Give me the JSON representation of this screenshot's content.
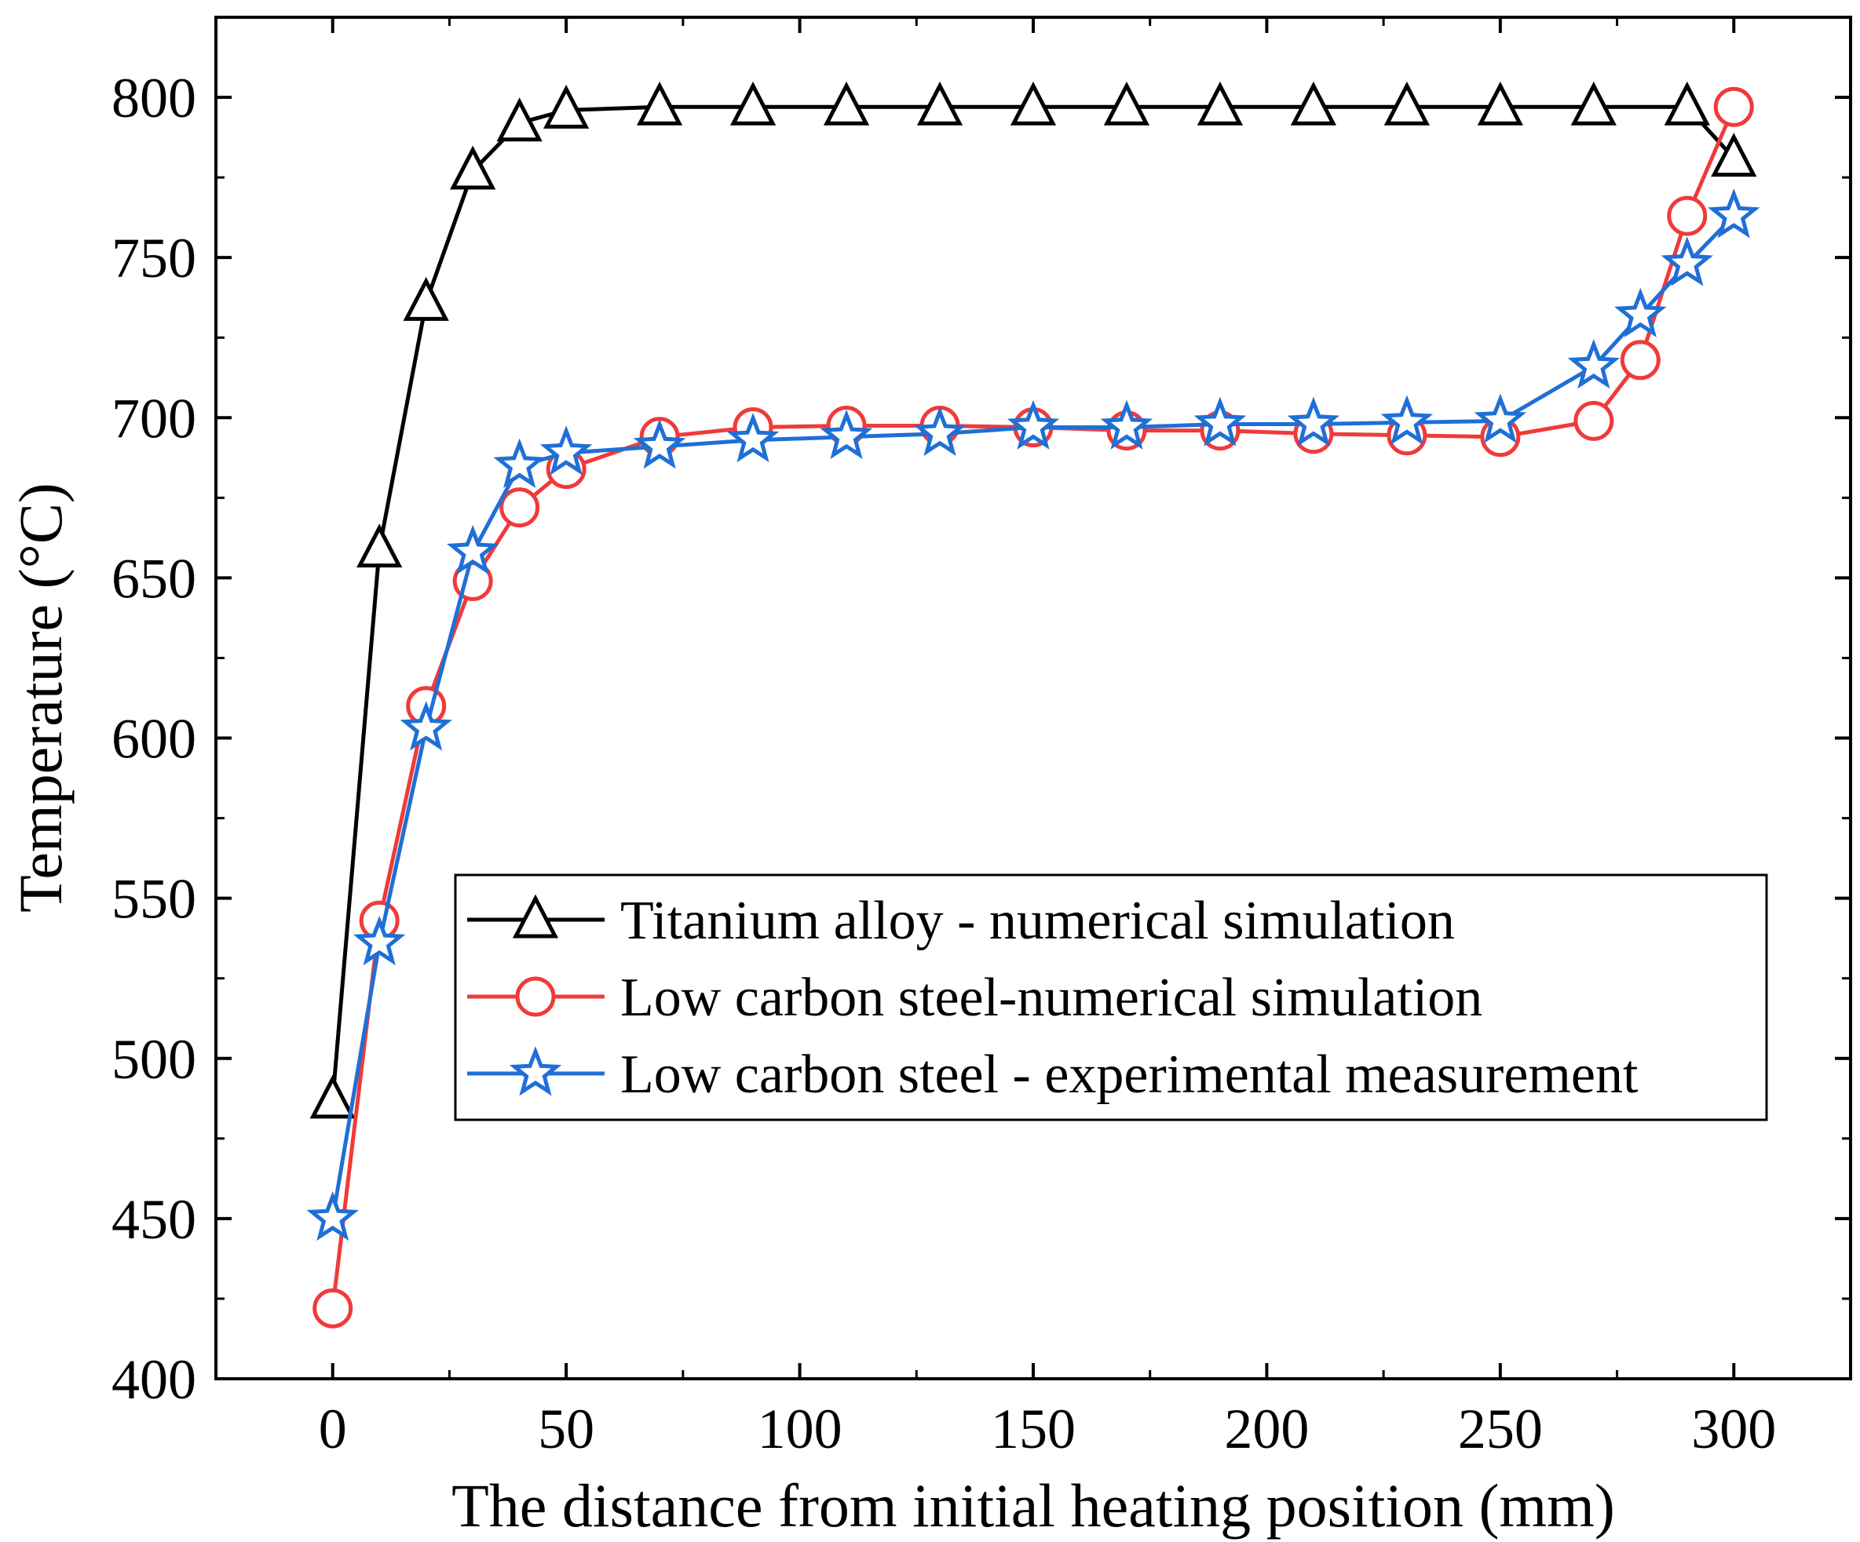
{
  "chart_data": {
    "type": "line",
    "title": "",
    "xlabel": "The distance from initial heating position (mm)",
    "ylabel": "Temperature (°C)",
    "xlim": [
      -25,
      325
    ],
    "ylim": [
      400,
      825
    ],
    "xticks": [
      0,
      50,
      100,
      150,
      200,
      250,
      300
    ],
    "yticks": [
      400,
      450,
      500,
      550,
      600,
      650,
      700,
      750,
      800
    ],
    "grid": false,
    "legend_position": "lower-right",
    "series": [
      {
        "name": "Titanium alloy - numerical simulation",
        "color": "#000000",
        "marker": "triangle",
        "x": [
          0,
          10,
          20,
          30,
          40,
          50,
          70,
          90,
          110,
          130,
          150,
          170,
          190,
          210,
          230,
          250,
          270,
          290,
          300
        ],
        "y": [
          487,
          659,
          736,
          777,
          792,
          796,
          797,
          797,
          797,
          797,
          797,
          797,
          797,
          797,
          797,
          797,
          797,
          797,
          781
        ]
      },
      {
        "name": "Low carbon steel-numerical simulation",
        "color": "#f03a3a",
        "marker": "circle",
        "x": [
          0,
          10,
          20,
          30,
          40,
          50,
          70,
          90,
          110,
          130,
          150,
          170,
          190,
          210,
          230,
          250,
          270,
          280,
          290,
          300
        ],
        "y": [
          422,
          543,
          610,
          649,
          672,
          684,
          694,
          697,
          697.5,
          697.5,
          697,
          696,
          696,
          695,
          694.5,
          694,
          699,
          718,
          763,
          797
        ]
      },
      {
        "name": "Low carbon steel - experimental measurement",
        "color": "#1f6fd6",
        "marker": "star",
        "x": [
          0,
          10,
          20,
          30,
          40,
          50,
          70,
          90,
          110,
          130,
          150,
          170,
          190,
          210,
          230,
          250,
          270,
          280,
          290,
          300
        ],
        "y": [
          450,
          536,
          603,
          658,
          685,
          689,
          691,
          693,
          694,
          695,
          697,
          697,
          698,
          698,
          698.5,
          699,
          716,
          732,
          748,
          763
        ]
      }
    ]
  }
}
